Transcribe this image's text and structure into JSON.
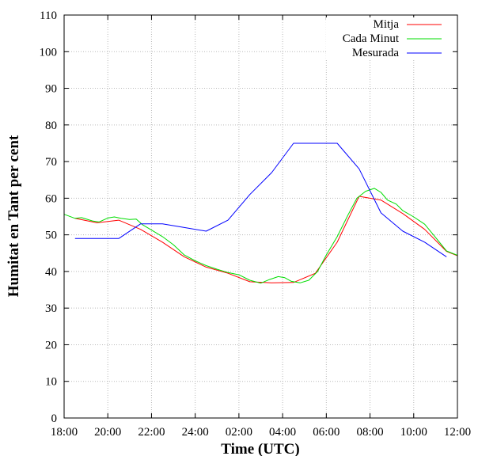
{
  "chart_data": {
    "type": "line",
    "title": "",
    "xlabel": "Time (UTC)",
    "ylabel": "Humitat en Tant per cent",
    "xlim": [
      0,
      18
    ],
    "ylim": [
      0,
      110
    ],
    "x_ticks": [
      {
        "value": 0,
        "label": "18:00"
      },
      {
        "value": 2,
        "label": "20:00"
      },
      {
        "value": 4,
        "label": "22:00"
      },
      {
        "value": 6,
        "label": "24:00"
      },
      {
        "value": 8,
        "label": "02:00"
      },
      {
        "value": 10,
        "label": "04:00"
      },
      {
        "value": 12,
        "label": "06:00"
      },
      {
        "value": 14,
        "label": "08:00"
      },
      {
        "value": 16,
        "label": "10:00"
      },
      {
        "value": 18,
        "label": "12:00"
      }
    ],
    "y_ticks": [
      0,
      10,
      20,
      30,
      40,
      50,
      60,
      70,
      80,
      90,
      100,
      110
    ],
    "grid": true,
    "legend_position": "top-right",
    "series": [
      {
        "name": "Mitja",
        "color": "#ff0000",
        "points": [
          [
            0.5,
            54.5
          ],
          [
            1.5,
            53.3
          ],
          [
            2.5,
            54
          ],
          [
            3.5,
            51.5
          ],
          [
            4.5,
            48
          ],
          [
            5.5,
            44
          ],
          [
            6.5,
            41.2
          ],
          [
            7.5,
            39.5
          ],
          [
            8.5,
            37.2
          ],
          [
            9.5,
            36.9
          ],
          [
            10.5,
            37
          ],
          [
            11.5,
            39.5
          ],
          [
            12.5,
            48
          ],
          [
            13.5,
            60.5
          ],
          [
            14.5,
            59.5
          ],
          [
            15.5,
            55.8
          ],
          [
            16.5,
            51.5
          ],
          [
            17.5,
            45.5
          ],
          [
            18,
            44.3
          ]
        ]
      },
      {
        "name": "Cada Minut",
        "color": "#00dd00",
        "points": [
          [
            0,
            55.6
          ],
          [
            0.5,
            54.5
          ],
          [
            0.8,
            54.7
          ],
          [
            1.3,
            53.8
          ],
          [
            1.6,
            53.5
          ],
          [
            2.0,
            54.6
          ],
          [
            2.3,
            54.9
          ],
          [
            2.6,
            54.5
          ],
          [
            3.0,
            54.2
          ],
          [
            3.3,
            54.3
          ],
          [
            3.6,
            52.7
          ],
          [
            4.0,
            51.3
          ],
          [
            4.5,
            49.5
          ],
          [
            5.0,
            47.3
          ],
          [
            5.5,
            44.5
          ],
          [
            6.0,
            42.9
          ],
          [
            6.5,
            41.6
          ],
          [
            7.0,
            40.6
          ],
          [
            7.5,
            39.7
          ],
          [
            8.0,
            39.1
          ],
          [
            8.5,
            37.6
          ],
          [
            9.0,
            36.8
          ],
          [
            9.4,
            37.8
          ],
          [
            9.8,
            38.6
          ],
          [
            10.1,
            38.3
          ],
          [
            10.4,
            37.3
          ],
          [
            10.8,
            36.9
          ],
          [
            11.2,
            37.6
          ],
          [
            11.6,
            40.0
          ],
          [
            12.0,
            44.5
          ],
          [
            12.5,
            49.5
          ],
          [
            13.0,
            55.5
          ],
          [
            13.4,
            60.0
          ],
          [
            13.8,
            61.9
          ],
          [
            14.2,
            62.7
          ],
          [
            14.5,
            61.6
          ],
          [
            14.8,
            59.5
          ],
          [
            15.2,
            58.4
          ],
          [
            15.5,
            56.6
          ],
          [
            16.0,
            54.9
          ],
          [
            16.5,
            52.9
          ],
          [
            17.0,
            49.3
          ],
          [
            17.5,
            45.6
          ],
          [
            18.0,
            44.4
          ]
        ]
      },
      {
        "name": "Mesurada",
        "color": "#0000ff",
        "points": [
          [
            0.5,
            49
          ],
          [
            1.5,
            49
          ],
          [
            2.5,
            49
          ],
          [
            3.5,
            53
          ],
          [
            4.5,
            53
          ],
          [
            5.5,
            52
          ],
          [
            6.5,
            51
          ],
          [
            7.5,
            54
          ],
          [
            8.5,
            61
          ],
          [
            9.5,
            67
          ],
          [
            10.5,
            75
          ],
          [
            11.5,
            75
          ],
          [
            12.5,
            75
          ],
          [
            13.5,
            68
          ],
          [
            14.5,
            56
          ],
          [
            15.5,
            51
          ],
          [
            16.5,
            48
          ],
          [
            17.5,
            44
          ]
        ]
      }
    ]
  }
}
